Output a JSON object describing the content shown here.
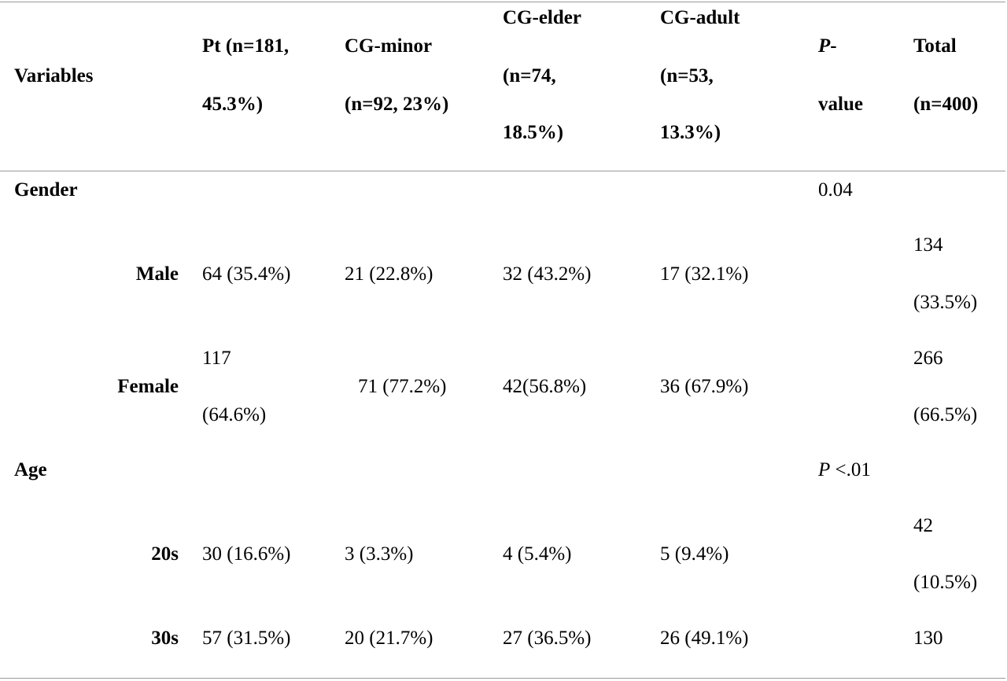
{
  "table": {
    "headers": {
      "variables": "Variables",
      "pt": [
        "Pt   (n=181,",
        "45.3%)"
      ],
      "cg_minor": [
        "CG-minor",
        "(n=92, 23%)"
      ],
      "cg_elder": [
        "CG-elder",
        "(n=74,",
        "18.5%)"
      ],
      "cg_adult": [
        "CG-adult",
        "(n=53,",
        "13.3%)"
      ],
      "p_value": [
        "P",
        "-",
        "value"
      ],
      "total": [
        "Total",
        "(n=400)"
      ]
    },
    "sections": [
      {
        "label": "Gender",
        "p_value": "0.04",
        "rows": [
          {
            "label": "Male",
            "pt": [
              "64 (35.4%)"
            ],
            "cg_minor": "21 (22.8%)",
            "cg_elder": "32 (43.2%)",
            "cg_adult": "17 (32.1%)",
            "total": [
              "134",
              "(33.5%)"
            ]
          },
          {
            "label": "Female",
            "pt": [
              "117",
              "(64.6%)"
            ],
            "cg_minor": "71 (77.2%)",
            "cg_elder": "42(56.8%)",
            "cg_adult": "36 (67.9%)",
            "total": [
              "266",
              "(66.5%)"
            ]
          }
        ]
      },
      {
        "label": "Age",
        "p_value": [
          "P",
          " <.01"
        ],
        "rows": [
          {
            "label": "20s",
            "pt": [
              "30 (16.6%)"
            ],
            "cg_minor": "3 (3.3%)",
            "cg_elder": "4 (5.4%)",
            "cg_adult": "5 (9.4%)",
            "total": [
              "42",
              "(10.5%)"
            ]
          },
          {
            "label": "30s",
            "pt": [
              "57 (31.5%)"
            ],
            "cg_minor": "20 (21.7%)",
            "cg_elder": "27 (36.5%)",
            "cg_adult": "26 (49.1%)",
            "total": [
              "130"
            ]
          }
        ]
      }
    ]
  }
}
